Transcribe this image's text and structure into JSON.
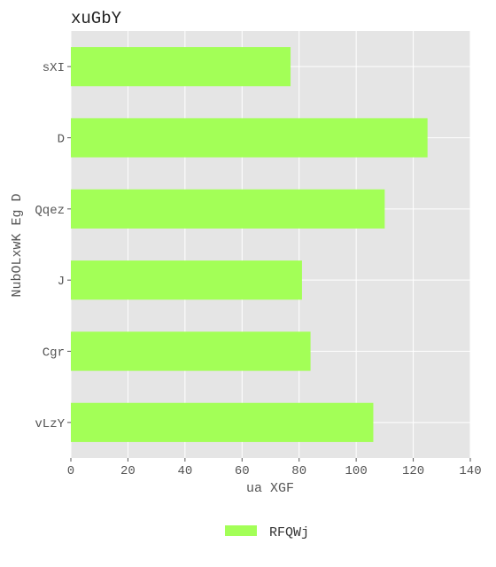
{
  "chart_data": {
    "type": "bar",
    "orientation": "horizontal",
    "title": "xuGbY",
    "xlabel": "ua XGF",
    "ylabel": "NubOLxwK Eg D",
    "categories": [
      "sXI",
      "D",
      "Qqez",
      "J",
      "Cgr",
      "vLzY"
    ],
    "series": [
      {
        "name": "RFQWj",
        "values": [
          77,
          125,
          110,
          81,
          84,
          106
        ]
      }
    ],
    "xlim": [
      0,
      140
    ],
    "xticks": [
      0,
      20,
      40,
      60,
      80,
      100,
      120,
      140
    ],
    "grid": true,
    "legend_position": "bottom-center",
    "colors": {
      "bar": "#a3ff57",
      "plot_background": "#e5e5e5",
      "grid": "#ffffff"
    }
  }
}
